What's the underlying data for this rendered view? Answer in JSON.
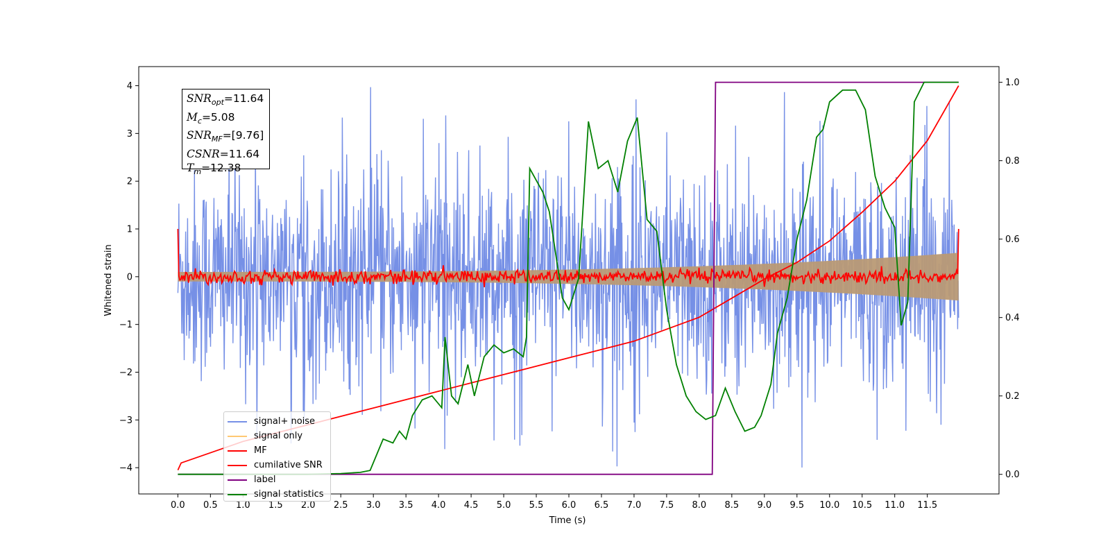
{
  "chart_data": {
    "type": "line",
    "xlabel": "Time (s)",
    "ylabel": "Whitened strain",
    "xlim": [
      -0.6,
      12.6
    ],
    "ylim": [
      -4.55,
      4.4
    ],
    "y2lim": [
      -0.05,
      1.04
    ],
    "x_ticks": [
      "0.0",
      "0.5",
      "1.0",
      "1.5",
      "2.0",
      "2.5",
      "3.0",
      "3.5",
      "4.0",
      "4.5",
      "5.0",
      "5.5",
      "6.0",
      "6.5",
      "7.0",
      "7.5",
      "8.0",
      "8.5",
      "9.0",
      "9.5",
      "10.0",
      "10.5",
      "11.0",
      "11.5"
    ],
    "y_ticks": [
      "4",
      "3",
      "2",
      "1",
      "0",
      "−1",
      "−2",
      "−3",
      "−4"
    ],
    "y2_ticks": [
      "1.0",
      "0.8",
      "0.6",
      "0.4",
      "0.2",
      "0.0"
    ],
    "annotations": [
      {
        "base": "SNR",
        "sub": "opt",
        "value": "=11.64"
      },
      {
        "base": "M",
        "sub": "c",
        "value": "=5.08"
      },
      {
        "base": "SNR",
        "sub": "MF",
        "value": "=[9.76]"
      },
      {
        "base": "CSNR",
        "sub": "",
        "value": "=11.64"
      },
      {
        "base": "T",
        "sub": "m",
        "value": "=12.38"
      }
    ],
    "legend_position": "lower-left",
    "series": [
      {
        "name": "signal+ noise",
        "color": "#7690e6",
        "axis": "left",
        "kind": "noise",
        "std": 1.1,
        "peak": 4.0,
        "t_end": 11.98
      },
      {
        "name": "signal only",
        "color": "#ffc872",
        "axis": "left",
        "kind": "chirp_envelope",
        "amp_start": 0.1,
        "amp_end": 0.5,
        "t_end": 11.98
      },
      {
        "name": "MF",
        "color": "#ff0000",
        "axis": "left",
        "kind": "noise",
        "std": 0.07,
        "edge_value": 1.0,
        "t_end": 11.98
      },
      {
        "name": "cumilative SNR",
        "color": "#ff0000",
        "axis": "left",
        "x": [
          0.0,
          0.05,
          1.0,
          2.0,
          3.0,
          4.0,
          5.0,
          6.0,
          7.0,
          8.0,
          9.0,
          9.5,
          10.0,
          10.5,
          11.0,
          11.5,
          11.98
        ],
        "y": [
          -4.05,
          -3.9,
          -3.45,
          -3.1,
          -2.75,
          -2.4,
          -2.05,
          -1.7,
          -1.35,
          -0.85,
          -0.05,
          0.3,
          0.75,
          1.35,
          2.0,
          2.85,
          4.0
        ]
      },
      {
        "name": "label",
        "color": "#800080",
        "axis": "right",
        "x": [
          0.0,
          8.2,
          8.25,
          11.98
        ],
        "y": [
          0.0,
          0.0,
          1.0,
          1.0
        ]
      },
      {
        "name": "signal statistics",
        "color": "#008000",
        "axis": "right",
        "x": [
          0.0,
          0.5,
          1.0,
          2.0,
          2.5,
          2.8,
          2.95,
          3.05,
          3.15,
          3.3,
          3.4,
          3.5,
          3.6,
          3.75,
          3.9,
          4.05,
          4.1,
          4.2,
          4.3,
          4.45,
          4.55,
          4.7,
          4.85,
          5.0,
          5.15,
          5.3,
          5.35,
          5.4,
          5.5,
          5.6,
          5.7,
          5.9,
          6.0,
          6.15,
          6.3,
          6.45,
          6.6,
          6.75,
          6.9,
          7.05,
          7.2,
          7.35,
          7.5,
          7.65,
          7.8,
          7.95,
          8.1,
          8.25,
          8.4,
          8.55,
          8.7,
          8.85,
          8.95,
          9.1,
          9.2,
          9.35,
          9.5,
          9.65,
          9.8,
          9.9,
          10.0,
          10.2,
          10.4,
          10.55,
          10.7,
          10.85,
          11.0,
          11.1,
          11.2,
          11.3,
          11.45,
          11.6,
          11.8,
          11.98
        ],
        "y": [
          0.0,
          0.0,
          0.0,
          0.0,
          0.002,
          0.005,
          0.01,
          0.05,
          0.09,
          0.08,
          0.11,
          0.09,
          0.15,
          0.19,
          0.2,
          0.17,
          0.35,
          0.2,
          0.18,
          0.28,
          0.2,
          0.3,
          0.33,
          0.31,
          0.32,
          0.3,
          0.35,
          0.78,
          0.75,
          0.72,
          0.67,
          0.45,
          0.42,
          0.5,
          0.9,
          0.78,
          0.8,
          0.72,
          0.85,
          0.91,
          0.65,
          0.62,
          0.42,
          0.28,
          0.2,
          0.16,
          0.14,
          0.15,
          0.22,
          0.16,
          0.11,
          0.12,
          0.15,
          0.23,
          0.36,
          0.45,
          0.6,
          0.7,
          0.86,
          0.88,
          0.95,
          0.98,
          0.98,
          0.93,
          0.76,
          0.68,
          0.63,
          0.38,
          0.44,
          0.95,
          1.0,
          1.0,
          1.0,
          1.0
        ]
      }
    ]
  }
}
